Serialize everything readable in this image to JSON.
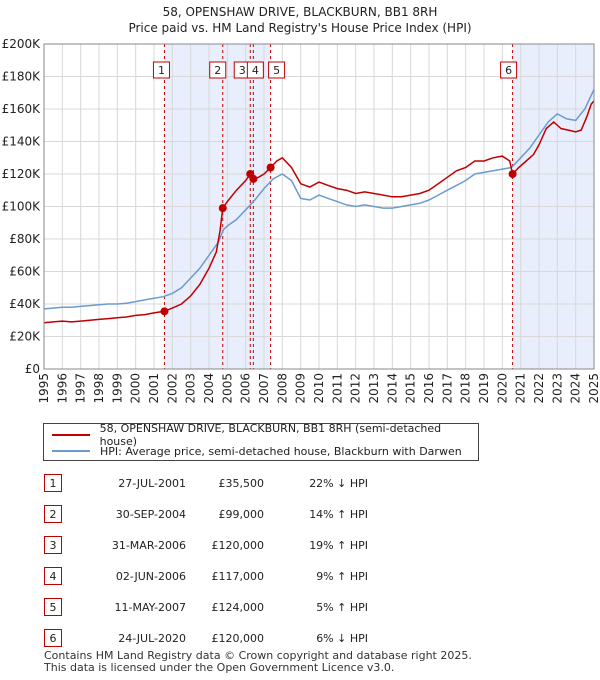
{
  "colors": {
    "price": "#c00000",
    "hpi": "#6b9bd1",
    "shade": "#e8eefb",
    "grid": "#d8d8d8"
  },
  "chart_data": {
    "type": "line",
    "title": "58, OPENSHAW DRIVE, BLACKBURN, BB1 8RH",
    "subtitle": "Price paid vs. HM Land Registry's House Price Index (HPI)",
    "xlabel": "",
    "ylabel": "",
    "xlim": [
      1995,
      2025
    ],
    "ylim": [
      0,
      200000
    ],
    "y_ticks": [
      0,
      20000,
      40000,
      60000,
      80000,
      100000,
      120000,
      140000,
      160000,
      180000,
      200000
    ],
    "y_tick_labels": [
      "£0",
      "£20K",
      "£40K",
      "£60K",
      "£80K",
      "£100K",
      "£120K",
      "£140K",
      "£160K",
      "£180K",
      "£200K"
    ],
    "x_ticks": [
      1995,
      1996,
      1997,
      1998,
      1999,
      2000,
      2001,
      2002,
      2003,
      2004,
      2005,
      2006,
      2007,
      2008,
      2009,
      2010,
      2011,
      2012,
      2013,
      2014,
      2015,
      2016,
      2017,
      2018,
      2019,
      2020,
      2021,
      2022,
      2023,
      2024,
      2025
    ],
    "x_tick_labels": [
      "1995",
      "1996",
      "1997",
      "1998",
      "1999",
      "2000",
      "2001",
      "2002",
      "2003",
      "2004",
      "2005",
      "2006",
      "2007",
      "2008",
      "2009",
      "2010",
      "2011",
      "2012",
      "2013",
      "2014",
      "2015",
      "2016",
      "2017",
      "2018",
      "2019",
      "2020",
      "2021",
      "2022",
      "2023",
      "2024",
      "2025"
    ],
    "grid": true,
    "shaded_periods": [
      [
        2001.57,
        2007.36
      ],
      [
        2020.56,
        2025.0
      ]
    ],
    "series": [
      {
        "name": "58, OPENSHAW DRIVE, BLACKBURN, BB1 8RH (semi-detached house)",
        "color": "#c00000",
        "points": [
          [
            1995.0,
            28500
          ],
          [
            1995.5,
            29000
          ],
          [
            1996.0,
            29500
          ],
          [
            1996.5,
            29000
          ],
          [
            1997.0,
            29500
          ],
          [
            1997.5,
            30000
          ],
          [
            1998.0,
            30500
          ],
          [
            1998.5,
            31000
          ],
          [
            1999.0,
            31500
          ],
          [
            1999.5,
            32000
          ],
          [
            2000.0,
            33000
          ],
          [
            2000.5,
            33500
          ],
          [
            2001.0,
            34500
          ],
          [
            2001.57,
            35500
          ],
          [
            2002.0,
            37500
          ],
          [
            2002.5,
            40000
          ],
          [
            2003.0,
            45000
          ],
          [
            2003.5,
            52000
          ],
          [
            2004.0,
            62000
          ],
          [
            2004.4,
            72000
          ],
          [
            2004.6,
            85000
          ],
          [
            2004.75,
            99000
          ],
          [
            2005.0,
            103000
          ],
          [
            2005.5,
            110000
          ],
          [
            2006.0,
            116000
          ],
          [
            2006.25,
            120000
          ],
          [
            2006.42,
            117000
          ],
          [
            2006.7,
            118000
          ],
          [
            2007.0,
            120000
          ],
          [
            2007.36,
            124000
          ],
          [
            2007.7,
            128000
          ],
          [
            2008.0,
            130000
          ],
          [
            2008.5,
            124000
          ],
          [
            2009.0,
            114000
          ],
          [
            2009.5,
            112000
          ],
          [
            2010.0,
            115000
          ],
          [
            2010.5,
            113000
          ],
          [
            2011.0,
            111000
          ],
          [
            2011.5,
            110000
          ],
          [
            2012.0,
            108000
          ],
          [
            2012.5,
            109000
          ],
          [
            2013.0,
            108000
          ],
          [
            2013.5,
            107000
          ],
          [
            2014.0,
            106000
          ],
          [
            2014.5,
            106000
          ],
          [
            2015.0,
            107000
          ],
          [
            2015.5,
            108000
          ],
          [
            2016.0,
            110000
          ],
          [
            2016.5,
            114000
          ],
          [
            2017.0,
            118000
          ],
          [
            2017.5,
            122000
          ],
          [
            2018.0,
            124000
          ],
          [
            2018.5,
            128000
          ],
          [
            2019.0,
            128000
          ],
          [
            2019.5,
            130000
          ],
          [
            2020.0,
            131000
          ],
          [
            2020.4,
            128000
          ],
          [
            2020.56,
            120000
          ],
          [
            2020.9,
            124000
          ],
          [
            2021.3,
            128000
          ],
          [
            2021.7,
            132000
          ],
          [
            2022.0,
            138000
          ],
          [
            2022.4,
            148000
          ],
          [
            2022.8,
            152000
          ],
          [
            2023.2,
            148000
          ],
          [
            2023.6,
            147000
          ],
          [
            2024.0,
            146000
          ],
          [
            2024.3,
            147000
          ],
          [
            2024.6,
            155000
          ],
          [
            2024.85,
            163000
          ],
          [
            2025.0,
            165000
          ]
        ]
      },
      {
        "name": "HPI: Average price, semi-detached house, Blackburn with Darwen",
        "color": "#6b9bd1",
        "points": [
          [
            1995.0,
            37000
          ],
          [
            1995.5,
            37500
          ],
          [
            1996.0,
            38000
          ],
          [
            1996.5,
            38000
          ],
          [
            1997.0,
            38500
          ],
          [
            1997.5,
            39000
          ],
          [
            1998.0,
            39500
          ],
          [
            1998.5,
            40000
          ],
          [
            1999.0,
            40000
          ],
          [
            1999.5,
            40500
          ],
          [
            2000.0,
            41500
          ],
          [
            2000.5,
            42500
          ],
          [
            2001.0,
            43500
          ],
          [
            2001.5,
            44500
          ],
          [
            2002.0,
            46500
          ],
          [
            2002.5,
            50000
          ],
          [
            2003.0,
            56000
          ],
          [
            2003.5,
            62000
          ],
          [
            2004.0,
            70000
          ],
          [
            2004.5,
            78000
          ],
          [
            2004.8,
            86000
          ],
          [
            2005.0,
            88000
          ],
          [
            2005.5,
            92000
          ],
          [
            2006.0,
            98000
          ],
          [
            2006.5,
            104000
          ],
          [
            2007.0,
            111000
          ],
          [
            2007.5,
            117000
          ],
          [
            2008.0,
            120000
          ],
          [
            2008.5,
            116000
          ],
          [
            2009.0,
            105000
          ],
          [
            2009.5,
            104000
          ],
          [
            2010.0,
            107000
          ],
          [
            2010.5,
            105000
          ],
          [
            2011.0,
            103000
          ],
          [
            2011.5,
            101000
          ],
          [
            2012.0,
            100000
          ],
          [
            2012.5,
            101000
          ],
          [
            2013.0,
            100000
          ],
          [
            2013.5,
            99000
          ],
          [
            2014.0,
            99000
          ],
          [
            2014.5,
            100000
          ],
          [
            2015.0,
            101000
          ],
          [
            2015.5,
            102000
          ],
          [
            2016.0,
            104000
          ],
          [
            2016.5,
            107000
          ],
          [
            2017.0,
            110000
          ],
          [
            2017.5,
            113000
          ],
          [
            2018.0,
            116000
          ],
          [
            2018.5,
            120000
          ],
          [
            2019.0,
            121000
          ],
          [
            2019.5,
            122000
          ],
          [
            2020.0,
            123000
          ],
          [
            2020.5,
            124000
          ],
          [
            2021.0,
            130000
          ],
          [
            2021.5,
            136000
          ],
          [
            2022.0,
            144000
          ],
          [
            2022.5,
            152000
          ],
          [
            2023.0,
            157000
          ],
          [
            2023.5,
            154000
          ],
          [
            2024.0,
            153000
          ],
          [
            2024.5,
            160000
          ],
          [
            2025.0,
            172000
          ]
        ]
      }
    ],
    "sales": [
      {
        "label": "1",
        "x": 2001.57,
        "price": 35500
      },
      {
        "label": "2",
        "x": 2004.75,
        "price": 99000
      },
      {
        "label": "3",
        "x": 2006.25,
        "price": 120000
      },
      {
        "label": "4",
        "x": 2006.42,
        "price": 117000
      },
      {
        "label": "5",
        "x": 2007.36,
        "price": 124000
      },
      {
        "label": "6",
        "x": 2020.56,
        "price": 120000
      }
    ]
  },
  "legend": {
    "price_label": "58, OPENSHAW DRIVE, BLACKBURN, BB1 8RH (semi-detached house)",
    "hpi_label": "HPI: Average price, semi-detached house, Blackburn with Darwen"
  },
  "transactions": [
    {
      "num": "1",
      "date": "27-JUL-2001",
      "price": "£35,500",
      "hpi": "22% ↓ HPI"
    },
    {
      "num": "2",
      "date": "30-SEP-2004",
      "price": "£99,000",
      "hpi": "14% ↑ HPI"
    },
    {
      "num": "3",
      "date": "31-MAR-2006",
      "price": "£120,000",
      "hpi": "19% ↑ HPI"
    },
    {
      "num": "4",
      "date": "02-JUN-2006",
      "price": "£117,000",
      "hpi": "9% ↑ HPI"
    },
    {
      "num": "5",
      "date": "11-MAY-2007",
      "price": "£124,000",
      "hpi": "5% ↑ HPI"
    },
    {
      "num": "6",
      "date": "24-JUL-2020",
      "price": "£120,000",
      "hpi": "6% ↓ HPI"
    }
  ],
  "footer": {
    "line1": "Contains HM Land Registry data © Crown copyright and database right 2025.",
    "line2": "This data is licensed under the Open Government Licence v3.0."
  }
}
